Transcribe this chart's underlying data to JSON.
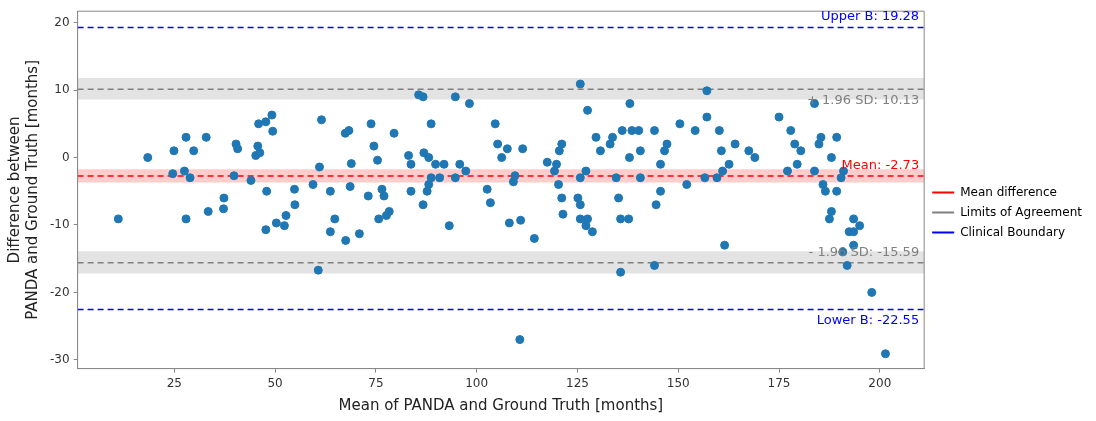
{
  "chart_data": {
    "type": "scatter",
    "xlabel": "Mean of PANDA and Ground Truth [months]",
    "ylabel": "Difference between\nPANDA and Ground Truth [months]",
    "xlim": [
      1,
      211
    ],
    "xticks": [
      25,
      50,
      75,
      100,
      125,
      150,
      175,
      200
    ],
    "ylim": [
      -31.3,
      21.7
    ],
    "yticks": [
      -30,
      -20,
      -10,
      0,
      10,
      20
    ],
    "legend": "right",
    "grid": false,
    "bands": [
      {
        "axis": "y",
        "from": -3.7,
        "to": -1.75,
        "color": "#ffcccc"
      },
      {
        "axis": "y",
        "from": 8.6,
        "to": 11.8,
        "color": "#e3e3e3"
      },
      {
        "axis": "y",
        "from": -17.2,
        "to": -13.9,
        "color": "#e3e3e3"
      }
    ],
    "series": [
      {
        "color": "#1f77b4",
        "marker": "circle",
        "x": [
          11.1,
          18.4,
          24.9,
          24.6,
          27.9,
          27.5,
          28.9,
          29.8,
          27.9,
          32.9,
          33.4,
          37.3,
          37.2,
          39.8,
          40.3,
          40.7,
          44.0,
          45.9,
          47.7,
          49.2,
          49.4,
          45.7,
          45.2,
          46.2,
          47.9,
          47.7,
          50.3,
          52.3,
          52.7,
          54.8,
          54.9,
          59.4,
          60.7,
          61.0,
          61.5,
          63.7,
          63.7,
          64.8,
          67.5,
          67.4,
          68.3,
          68.9,
          68.6,
          70.9,
          73.8,
          74.5,
          75.4,
          76.5,
          77.0,
          75.7,
          77.6,
          78.3,
          79.5,
          73.1,
          83.1,
          83.7,
          83.7,
          85.6,
          86.7,
          86.9,
          86.7,
          88.1,
          88.7,
          87.7,
          88.1,
          88.7,
          89.8,
          90.8,
          91.9,
          93.2,
          94.7,
          94.7,
          95.8,
          97.3,
          98.2,
          102.6,
          103.4,
          104.6,
          105.2,
          106.2,
          107.6,
          108.1,
          109.1,
          109.5,
          110.7,
          110.9,
          111.4,
          114.3,
          117.5,
          119.3,
          119.8,
          120.3,
          120.5,
          121.1,
          121.1,
          121.4,
          125.1,
          125.7,
          125.7,
          125.7,
          125.7,
          127.1,
          127.5,
          127.1,
          127.5,
          128.7,
          129.6,
          130.7,
          133.1,
          133.7,
          134.6,
          135.2,
          135.7,
          135.7,
          138.0,
          137.9,
          138.5,
          137.7,
          136.1,
          140.2,
          140.6,
          140.6,
          144.1,
          144.5,
          144.1,
          145.6,
          145.6,
          146.6,
          147.2,
          150.4,
          152.1,
          154.2,
          156.6,
          157.1,
          157.1,
          159.6,
          160.2,
          160.7,
          161.0,
          161.5,
          162.6,
          164.1,
          167.5,
          169.0,
          175.0,
          177.1,
          177.9,
          178.9,
          179.5,
          180.4,
          183.8,
          183.8,
          184.9,
          185.4,
          185.9,
          186.5,
          187.5,
          188.0,
          188.0,
          189.3,
          189.3,
          190.4,
          191.0,
          190.8,
          191.9,
          192.4,
          193.5,
          193.5,
          193.5,
          195.0,
          198.0,
          201.4
        ],
        "values": [
          -9.1,
          0,
          1.0,
          -2.4,
          3.0,
          -2.0,
          -3.0,
          1.0,
          -9.1,
          3.0,
          -8.0,
          -6.0,
          -7.6,
          -2.7,
          2.0,
          1.3,
          -3.4,
          5.0,
          5.3,
          6.3,
          3.9,
          1.7,
          0.3,
          0.7,
          -5.0,
          -10.7,
          -9.7,
          -10.1,
          -8.6,
          -4.7,
          -7.0,
          -4.0,
          -16.7,
          -1.4,
          5.6,
          -5.0,
          -11.0,
          -9.1,
          -12.3,
          3.6,
          4.0,
          -0.9,
          -4.3,
          -11.3,
          5.0,
          1.7,
          -0.4,
          -4.7,
          -5.7,
          -9.1,
          -8.6,
          -8.0,
          3.6,
          -5.7,
          0.3,
          -1.0,
          -5.0,
          9.3,
          9.0,
          0.7,
          -7.0,
          0,
          5.0,
          -5.0,
          -4.0,
          -3.0,
          -1.0,
          -3.0,
          -1.0,
          -10.1,
          9.0,
          -3.0,
          -1.0,
          -2.0,
          8.0,
          -4.7,
          -6.7,
          5.0,
          2.0,
          0,
          1.3,
          -9.7,
          -3.6,
          -2.7,
          -27.0,
          -9.3,
          1.3,
          -12.0,
          -0.7,
          -2.0,
          -1.0,
          -4.0,
          1.0,
          2.0,
          -6.0,
          -8.4,
          -6.0,
          -7.0,
          10.9,
          -3.0,
          -9.1,
          -2.0,
          7.0,
          -10.1,
          -9.1,
          -11.0,
          3.0,
          1.0,
          2.0,
          3.0,
          -3.0,
          -6.0,
          -17.0,
          -9.1,
          8.0,
          0,
          4.0,
          -9.1,
          4.0,
          4.0,
          -3.0,
          1.0,
          4.0,
          -7.0,
          -16.0,
          -1.0,
          -5.0,
          1.0,
          2.0,
          5.0,
          -4.0,
          4.0,
          -3.0,
          9.9,
          6.0,
          -3.0,
          4.0,
          1.0,
          -2.0,
          -13.0,
          -1.0,
          2.0,
          1.0,
          0,
          6.0,
          -2.0,
          4.0,
          2.0,
          -1.0,
          1.0,
          8.0,
          -2.0,
          2.0,
          3.0,
          -4.0,
          -5.0,
          -9.1,
          -8.0,
          0,
          3.0,
          -5.0,
          -3.0,
          -2.0,
          -14.0,
          -16.0,
          -11.0,
          -11.0,
          -9.1,
          -13.0,
          -10.1,
          -20.0,
          -29.1
        ]
      },
      {
        "type": "line",
        "name": "Mean difference",
        "color": "#ff0000",
        "line_style": "dashed",
        "marker": "none",
        "x": [
          1,
          211
        ],
        "values": [
          -2.73,
          -2.73
        ]
      },
      {
        "type": "line",
        "name": "Limits of Agreement",
        "color": "#808080",
        "line_style": "dashed",
        "marker": "none",
        "x": [
          1,
          211
        ],
        "values": [
          10.13,
          10.13
        ]
      },
      {
        "type": "line",
        "color": "#808080",
        "line_style": "dashed",
        "marker": "none",
        "x": [
          1,
          211
        ],
        "values": [
          -15.59,
          -15.59
        ]
      },
      {
        "type": "line",
        "name": "Clinical Boundary",
        "color": "#0000ff",
        "line_style": "dashed",
        "marker": "none",
        "x": [
          1,
          211
        ],
        "values": [
          19.28,
          19.28
        ]
      },
      {
        "type": "line",
        "color": "#0000ff",
        "line_style": "dashed",
        "marker": "none",
        "x": [
          1,
          211
        ],
        "values": [
          -22.55,
          -22.55
        ]
      }
    ],
    "annotations": [
      {
        "text": "Upper B: 19.28",
        "y": 19.28
      },
      {
        "text": "+ 1.96 SD: 10.13",
        "y": 10.13
      },
      {
        "text": "Mean: -2.73",
        "y": -2.73
      },
      {
        "text": "- 1.96 SD: -15.59",
        "y": -15.59
      },
      {
        "text": "Lower B: -22.55",
        "y": -22.55
      }
    ]
  }
}
